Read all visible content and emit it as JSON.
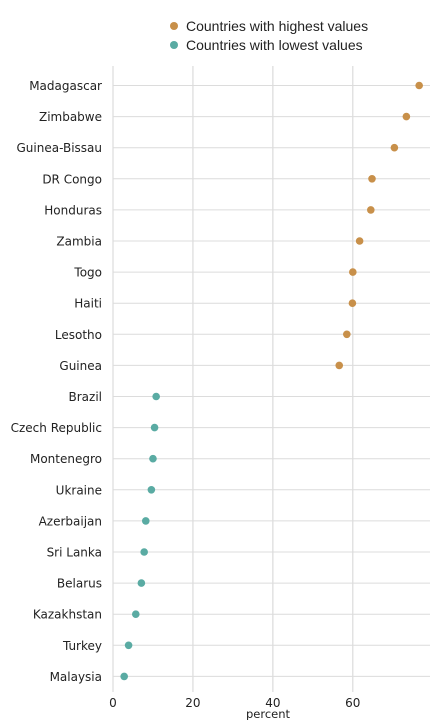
{
  "chart_data": {
    "type": "scatter",
    "xlabel": "percent",
    "ylabel": "",
    "xlim": [
      0,
      80
    ],
    "xticks": [
      0,
      20,
      40,
      60
    ],
    "grid": true,
    "legend_position": "top",
    "series": [
      {
        "name": "Countries with highest values",
        "color": "#c8904a",
        "points": [
          {
            "country": "Madagascar",
            "value": 76.6
          },
          {
            "country": "Zimbabwe",
            "value": 73.4
          },
          {
            "country": "Guinea-Bissau",
            "value": 70.4
          },
          {
            "country": "DR Congo",
            "value": 64.8
          },
          {
            "country": "Honduras",
            "value": 64.5
          },
          {
            "country": "Zambia",
            "value": 61.7
          },
          {
            "country": "Togo",
            "value": 60.0
          },
          {
            "country": "Haiti",
            "value": 59.9
          },
          {
            "country": "Lesotho",
            "value": 58.5
          },
          {
            "country": "Guinea",
            "value": 56.6
          }
        ]
      },
      {
        "name": "Countries with lowest values",
        "color": "#5aaba3",
        "points": [
          {
            "country": "Brazil",
            "value": 10.8
          },
          {
            "country": "Czech Republic",
            "value": 10.4
          },
          {
            "country": "Montenegro",
            "value": 10.0
          },
          {
            "country": "Ukraine",
            "value": 9.6
          },
          {
            "country": "Azerbaijan",
            "value": 8.2
          },
          {
            "country": "Sri Lanka",
            "value": 7.8
          },
          {
            "country": "Belarus",
            "value": 7.1
          },
          {
            "country": "Kazakhstan",
            "value": 5.7
          },
          {
            "country": "Turkey",
            "value": 3.9
          },
          {
            "country": "Malaysia",
            "value": 2.8
          }
        ]
      }
    ]
  }
}
